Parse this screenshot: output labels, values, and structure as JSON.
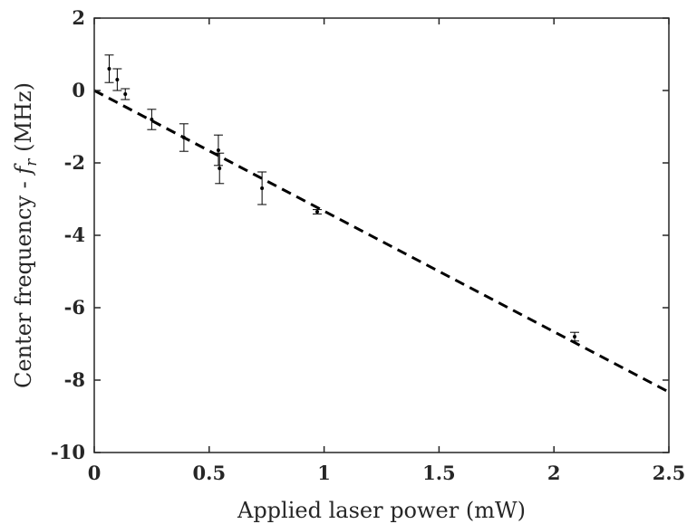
{
  "chart_data": {
    "type": "scatter",
    "xlabel": "Applied laser power (mW)",
    "ylabel": {
      "prefix": "Center frequency - ",
      "symbol": "f",
      "subscript": "r",
      "suffix": " (MHz)"
    },
    "xlim": [
      0,
      2.5
    ],
    "ylim": [
      -10,
      2
    ],
    "xticks": [
      0,
      0.5,
      1,
      1.5,
      2,
      2.5
    ],
    "xtick_labels": [
      "0",
      "0.5",
      "1",
      "1.5",
      "2",
      "2.5"
    ],
    "yticks": [
      -10,
      -8,
      -6,
      -4,
      -2,
      0,
      2
    ],
    "ytick_labels": [
      "-10",
      "-8",
      "-6",
      "-4",
      "-2",
      "0",
      "2"
    ],
    "grid": false,
    "series": [
      {
        "style": "points-with-error-bars",
        "color": "#000000",
        "points": [
          {
            "x": 0.065,
            "y": 0.6,
            "err": 0.38
          },
          {
            "x": 0.1,
            "y": 0.3,
            "err": 0.3
          },
          {
            "x": 0.135,
            "y": -0.1,
            "err": 0.15
          },
          {
            "x": 0.25,
            "y": -0.8,
            "err": 0.28
          },
          {
            "x": 0.39,
            "y": -1.3,
            "err": 0.38
          },
          {
            "x": 0.54,
            "y": -1.65,
            "err": 0.42
          },
          {
            "x": 0.545,
            "y": -2.15,
            "err": 0.42
          },
          {
            "x": 0.73,
            "y": -2.7,
            "err": 0.45
          },
          {
            "x": 0.97,
            "y": -3.35,
            "err": 0.06
          },
          {
            "x": 2.09,
            "y": -6.8,
            "err": 0.12
          }
        ]
      },
      {
        "style": "dashed-line",
        "color": "#000000",
        "x": [
          0,
          2.5
        ],
        "y": [
          0,
          -8.33
        ]
      }
    ]
  }
}
